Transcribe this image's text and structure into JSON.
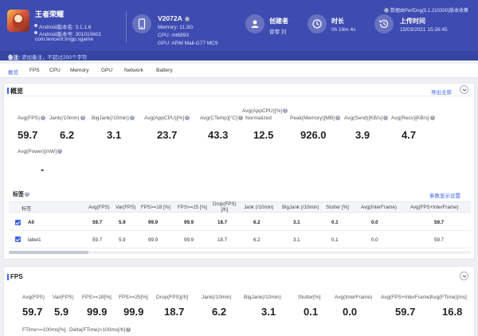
{
  "header": {
    "app_name": "王者荣耀",
    "android_version_label": "Android版本名: 3.1.1.6",
    "android_version_code": "Android版本号: 301010601",
    "package": "com.tencent.tmgp.sgame",
    "device_title": "V2072A",
    "memory": "Memory: 11.3G",
    "cpu": "CPU: mt6893",
    "gpu": "GPU: ARM Mali-G77 MC9",
    "creator_title": "创建者",
    "creator_value": "曾零 刘",
    "duration_title": "时长",
    "duration_value": "0h 16m 4s",
    "upload_title": "上传时间",
    "upload_value": "15/03/2021 15:26:45",
    "perfdog_version": "数据由PerfDog(5.1.210300)版本收集",
    "note_label": "备注:",
    "note_placeholder": "添加备注，不超过200个字符"
  },
  "tabs": [
    "概览",
    "FPS",
    "CPU",
    "Memory",
    "GPU",
    "Network",
    "Battery"
  ],
  "overview": {
    "title": "概览",
    "export_label": "导出全部",
    "metrics": [
      {
        "label": "Avg(FPS)",
        "value": "59.7"
      },
      {
        "label": "Jank(/10min)",
        "value": "6.2"
      },
      {
        "label": "BigJank(/10min)",
        "value": "3.1"
      },
      {
        "label": "Avg(AppCPU)[%]",
        "value": "23.7"
      },
      {
        "label": "Avg(CTemp)[°C]",
        "value": "43.3"
      },
      {
        "label": "Avg(AppCPU)[%]",
        "label2": "Normalized",
        "value": "12.5"
      },
      {
        "label": "Peak(Memory)[MB]",
        "value": "926.0"
      },
      {
        "label": "Avg(Send)[KB/s]",
        "value": "3.9"
      },
      {
        "label": "Avg(Recv)[KB/s]",
        "value": "4.7"
      },
      {
        "label": "Avg(Power)[mW]",
        "value": "-"
      }
    ]
  },
  "labels": {
    "title": "标签",
    "param_link": "参数显示设置",
    "columns": [
      "标签",
      "Avg(FPS)",
      "Var(FPS)",
      "FPS>=18 [%]",
      "FPS>=25 [%]",
      "Drop(FPS)",
      "Jank (/10min)",
      "BigJank (/10min)",
      "Stutter [%]",
      "Avg(InterFrame)",
      "Avg(FPS+InterFrame)"
    ],
    "column_drop_unit": "[/h]",
    "rows": [
      {
        "name": "All",
        "values": [
          "59.7",
          "5.9",
          "99.9",
          "99.9",
          "18.7",
          "6.2",
          "3.1",
          "0.1",
          "0.0",
          "59.7"
        ]
      },
      {
        "name": "label1",
        "values": [
          "59.7",
          "5.9",
          "99.9",
          "99.9",
          "18.7",
          "6.2",
          "3.1",
          "0.1",
          "0.0",
          "59.7"
        ]
      }
    ]
  },
  "fps": {
    "title": "FPS",
    "metrics": [
      {
        "label": "Avg(FPS)",
        "value": "59.7"
      },
      {
        "label": "Var(FPS)",
        "value": "5.9"
      },
      {
        "label": "FPS>=18[%]",
        "value": "99.9"
      },
      {
        "label": "FPS>=25[%]",
        "value": "99.9"
      },
      {
        "label": "Drop(FPS)[/h]",
        "value": "18.7"
      },
      {
        "label": "Jank(/10min)",
        "value": "6.2"
      },
      {
        "label": "BigJank(/10min)",
        "value": "3.1"
      },
      {
        "label": "Stutter[%]",
        "value": "0.1"
      },
      {
        "label": "Avg(InterFrame)",
        "value": "0.0"
      },
      {
        "label": "Avg(FPS+InterFrame)",
        "value": "59.7"
      },
      {
        "label": "Avg(FTime)[ms]",
        "value": "16.8"
      }
    ],
    "extra_labels": [
      "FTime>=100ms[%]",
      "Delta(FTime)>100ms[/h]"
    ]
  }
}
